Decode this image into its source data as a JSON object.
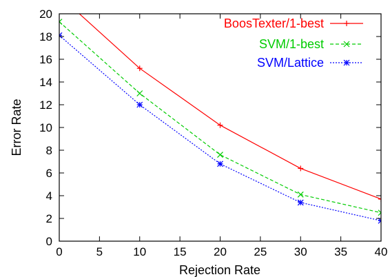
{
  "chart_data": {
    "type": "line",
    "title": "",
    "xlabel": "Rejection Rate",
    "ylabel": "Error Rate",
    "xlim": [
      0,
      40
    ],
    "ylim": [
      0,
      20
    ],
    "xticks": [
      0,
      5,
      10,
      15,
      20,
      25,
      30,
      35,
      40
    ],
    "yticks": [
      0,
      2,
      4,
      6,
      8,
      10,
      12,
      14,
      16,
      18,
      20
    ],
    "grid": false,
    "legend_position": "top-right",
    "x": [
      0,
      10,
      20,
      30,
      40
    ],
    "series": [
      {
        "name": "BoosTexter/1-best",
        "color": "#ff0000",
        "line_style": "solid",
        "marker": "plus",
        "values": [
          21.6,
          15.2,
          10.2,
          6.4,
          3.7
        ]
      },
      {
        "name": "SVM/1-best",
        "color": "#00cc00",
        "line_style": "dashed",
        "marker": "cross",
        "values": [
          19.3,
          13.0,
          7.6,
          4.1,
          2.5
        ]
      },
      {
        "name": "SVM/Lattice",
        "color": "#0000ff",
        "line_style": "dotted",
        "marker": "star",
        "values": [
          18.1,
          12.0,
          6.8,
          3.4,
          1.8
        ]
      }
    ]
  }
}
